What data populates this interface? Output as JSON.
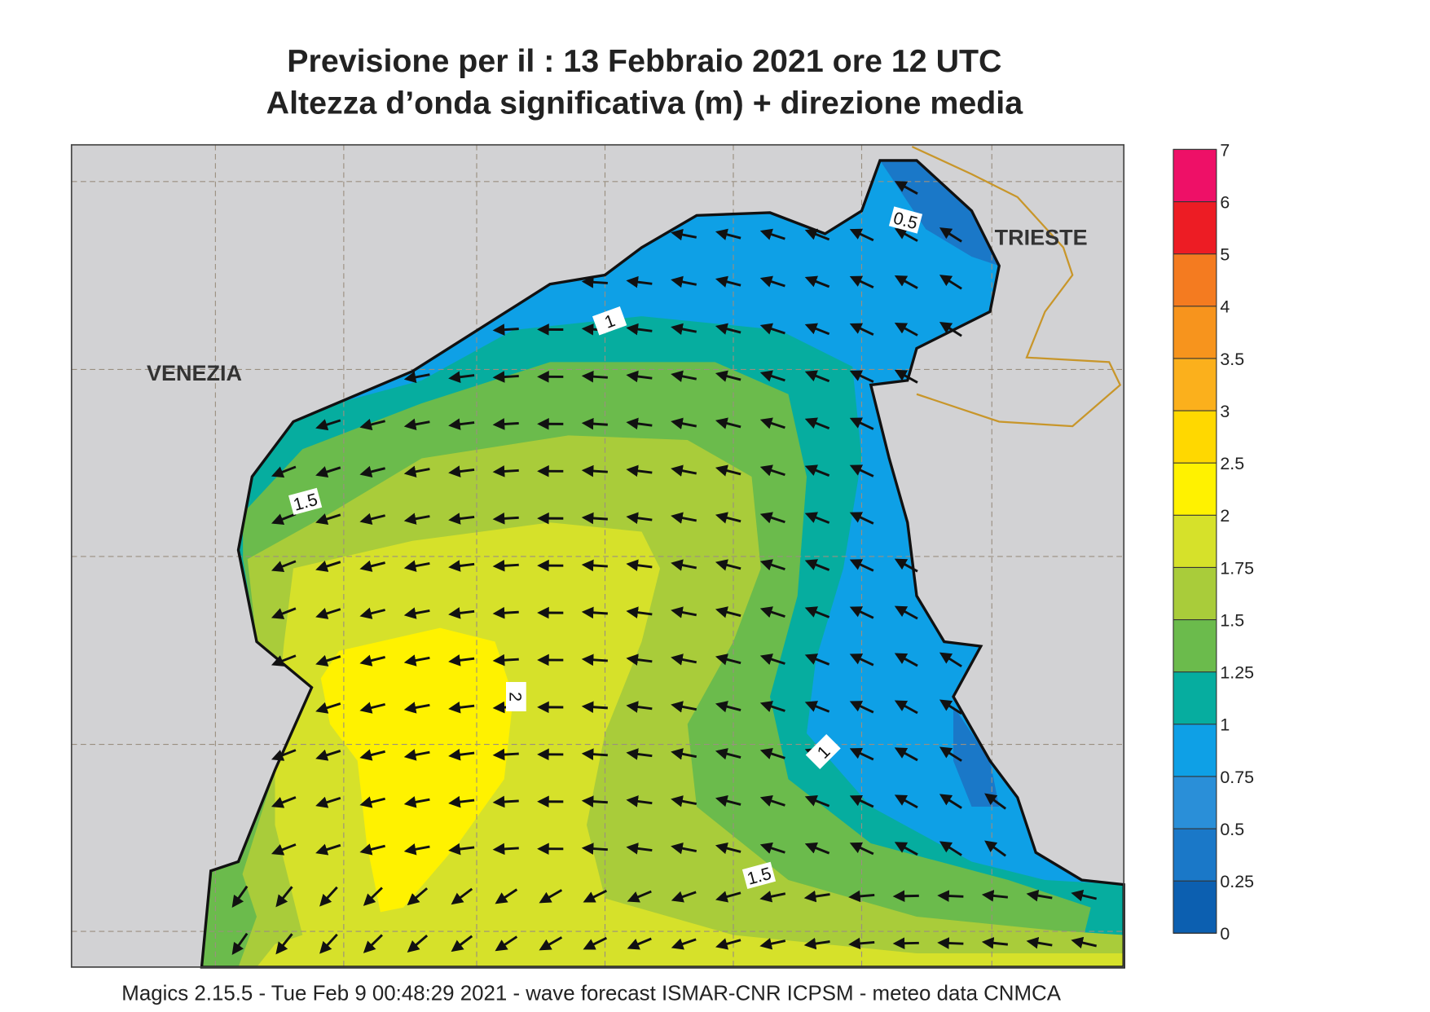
{
  "header": {
    "title": "Previsione per il  :  13  Febbraio 2021   ore 12 UTC",
    "subtitle": "Altezza d’onda significativa (m) + direzione media"
  },
  "places": [
    "VENEZIA",
    "TRIESTE"
  ],
  "contour_labels": [
    "0.5",
    "1",
    "1.5",
    "2",
    "1",
    "1.5"
  ],
  "colorbar": {
    "ticks": [
      0,
      0.25,
      0.5,
      0.75,
      1,
      1.25,
      1.5,
      1.75,
      2,
      2.5,
      3,
      3.5,
      4,
      5,
      6,
      7
    ],
    "colors": [
      "#0c5fb0",
      "#1a78c8",
      "#2a8fd8",
      "#0ea0e6",
      "#06ad9f",
      "#6bbb4c",
      "#a9cc3a",
      "#d6e12a",
      "#fff200",
      "#ffd800",
      "#fbb01c",
      "#f7941d",
      "#f47b20",
      "#ed1c24",
      "#ee1067"
    ]
  },
  "footer": "Magics 2.15.5 - Tue Feb  9 00:48:29 2021 - wave forecast  ISMAR-CNR  ICPSM - meteo data   CNMCA"
}
